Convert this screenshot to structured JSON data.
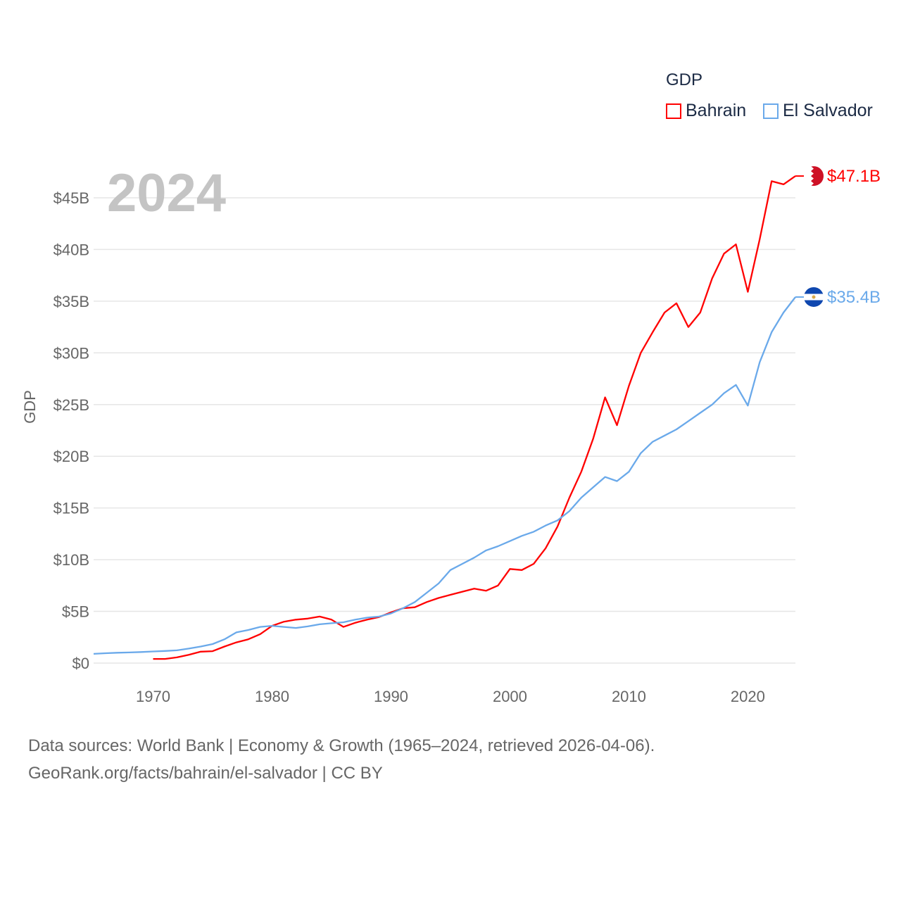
{
  "chart_data": {
    "type": "line",
    "title": "GDP",
    "year_label": "2024",
    "ylabel": "GDP",
    "xlabel": "",
    "ylim": [
      0,
      48
    ],
    "xlim": [
      1965,
      2024
    ],
    "x_ticks": [
      "1970",
      "1980",
      "1990",
      "2000",
      "2010",
      "2020"
    ],
    "y_ticks": [
      "$0",
      "$5B",
      "$10B",
      "$15B",
      "$20B",
      "$25B",
      "$30B",
      "$35B",
      "$40B",
      "$45B"
    ],
    "grid": true,
    "legend_position": "top-right",
    "series": [
      {
        "name": "Bahrain",
        "color": "#ff0000",
        "end_label": "$47.1B",
        "start_year": 1970,
        "values": [
          0.4,
          0.4,
          0.55,
          0.8,
          1.1,
          1.15,
          1.6,
          2.0,
          2.3,
          2.8,
          3.6,
          4.0,
          4.2,
          4.3,
          4.5,
          4.2,
          3.5,
          3.9,
          4.2,
          4.45,
          4.9,
          5.3,
          5.4,
          5.9,
          6.3,
          6.6,
          6.9,
          7.2,
          7.0,
          7.5,
          9.1,
          9.0,
          9.6,
          11.1,
          13.2,
          16.0,
          18.5,
          21.7,
          25.7,
          23.0,
          26.8,
          30.0,
          32.0,
          33.9,
          34.8,
          32.5,
          33.9,
          37.2,
          39.6,
          40.5,
          35.9,
          41.0,
          46.6,
          46.3,
          47.1
        ]
      },
      {
        "name": "El Salvador",
        "color": "#6aa9ea",
        "end_label": "$35.4B",
        "start_year": 1965,
        "values": [
          0.89,
          0.95,
          1.0,
          1.03,
          1.07,
          1.12,
          1.17,
          1.23,
          1.4,
          1.6,
          1.84,
          2.3,
          2.97,
          3.2,
          3.5,
          3.6,
          3.5,
          3.4,
          3.55,
          3.75,
          3.85,
          3.95,
          4.2,
          4.4,
          4.5,
          4.8,
          5.3,
          5.9,
          6.8,
          7.7,
          9.0,
          9.6,
          10.2,
          10.9,
          11.3,
          11.8,
          12.3,
          12.7,
          13.3,
          13.8,
          14.7,
          16.0,
          17.0,
          18.0,
          17.6,
          18.5,
          20.3,
          21.4,
          22.0,
          22.6,
          23.4,
          24.2,
          25.0,
          26.1,
          26.9,
          24.9,
          29.1,
          32.0,
          33.9,
          35.4
        ]
      }
    ]
  },
  "footer": {
    "line1": "Data sources: World Bank | Economy & Growth (1965–2024, retrieved 2026-04-06).",
    "line2": "GeoRank.org/facts/bahrain/el-salvador | CC BY"
  }
}
